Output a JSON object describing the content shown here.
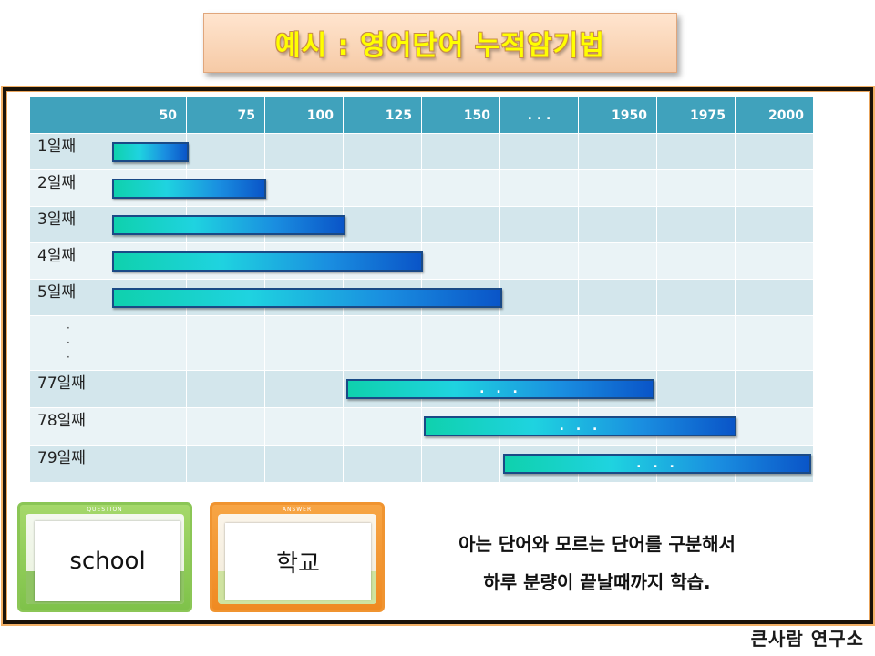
{
  "title": "예시 : 영어단어 누적암기법",
  "chart_data": {
    "type": "bar",
    "columns": [
      "50",
      "75",
      "100",
      "125",
      "150",
      ". . .",
      "1950",
      "1975",
      "2000"
    ],
    "rows": [
      "1일째",
      "2일째",
      "3일째",
      "4일째",
      "5일째",
      "·\n·\n·",
      "77일째",
      "78일째",
      "79일째"
    ],
    "bars": [
      {
        "row": 0,
        "start": 0,
        "end": 50,
        "label": ""
      },
      {
        "row": 1,
        "start": 0,
        "end": 75,
        "label": ""
      },
      {
        "row": 2,
        "start": 0,
        "end": 100,
        "label": ""
      },
      {
        "row": 3,
        "start": 0,
        "end": 125,
        "label": ""
      },
      {
        "row": 4,
        "start": 0,
        "end": 150,
        "label": ""
      },
      {
        "row": 6,
        "start": 100,
        "end": 1950,
        "label": ". . ."
      },
      {
        "row": 7,
        "start": 125,
        "end": 1975,
        "label": ". . ."
      },
      {
        "row": 8,
        "start": 150,
        "end": 2000,
        "label": ". . ."
      }
    ]
  },
  "cards": {
    "question": {
      "tag": "QUESTION",
      "word": "school"
    },
    "answer": {
      "tag": "ANSWER",
      "word": "학교"
    }
  },
  "description": {
    "line1": "아는 단어와 모르는 단어를 구분해서",
    "line2": "하루 분량이 끝날때까지 학습."
  },
  "footer": "큰사람 연구소",
  "colors": {
    "header": "#40a2bc",
    "row_odd": "#d3e6ec",
    "row_even": "#eaf3f6",
    "bar_start": "#0fd1ad",
    "bar_end": "#0a55c8",
    "title_text": "#ffff00"
  }
}
